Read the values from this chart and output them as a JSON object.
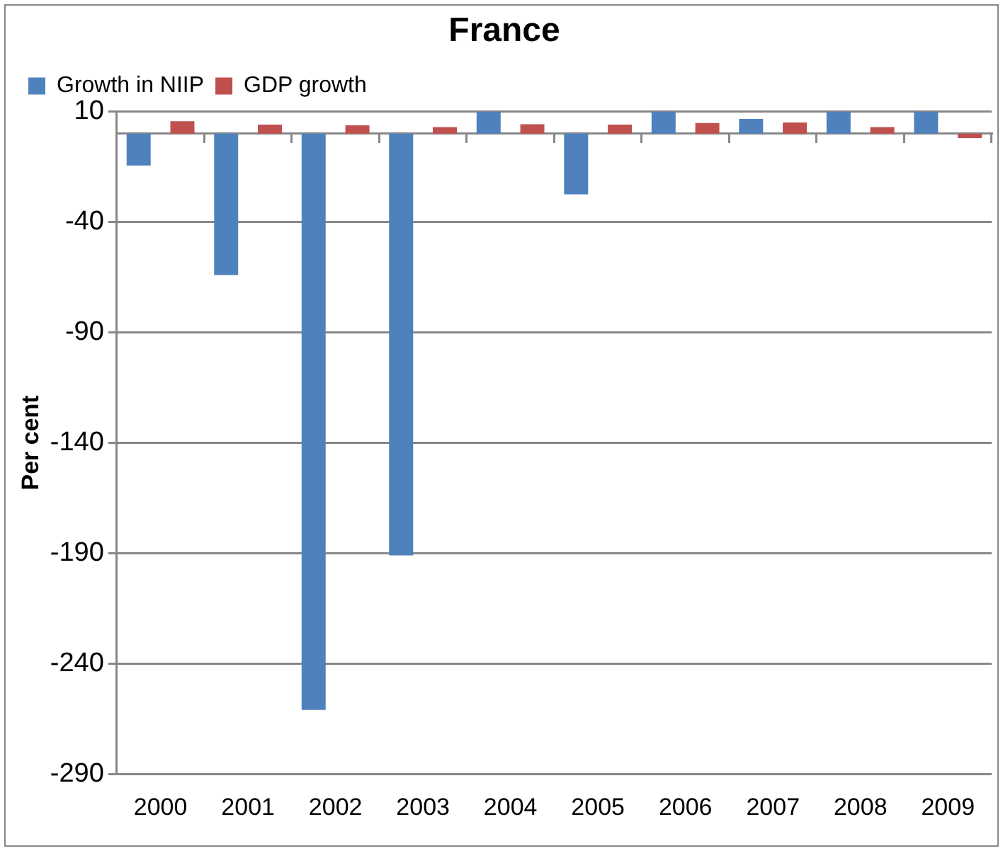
{
  "chart_data": {
    "type": "bar",
    "title": "France",
    "ylabel": "Per cent",
    "categories": [
      "2000",
      "2001",
      "2002",
      "2003",
      "2004",
      "2005",
      "2006",
      "2007",
      "2008",
      "2009"
    ],
    "series": [
      {
        "name": "Growth in NIIP",
        "color": "#4f81bd",
        "values": [
          -14.4,
          -64,
          -261,
          -191,
          10,
          -27.5,
          10,
          6.7,
          10,
          10
        ]
      },
      {
        "name": "GDP growth",
        "color": "#c0504d",
        "values": [
          5.6,
          4.1,
          3.8,
          3.0,
          4.3,
          4.1,
          4.8,
          5.1,
          3.0,
          -2.0
        ]
      }
    ],
    "ylim": [
      -290,
      10
    ],
    "yticks": [
      -290,
      -240,
      -190,
      -140,
      -90,
      -40,
      10
    ],
    "grid": "y",
    "legend": "top left"
  }
}
